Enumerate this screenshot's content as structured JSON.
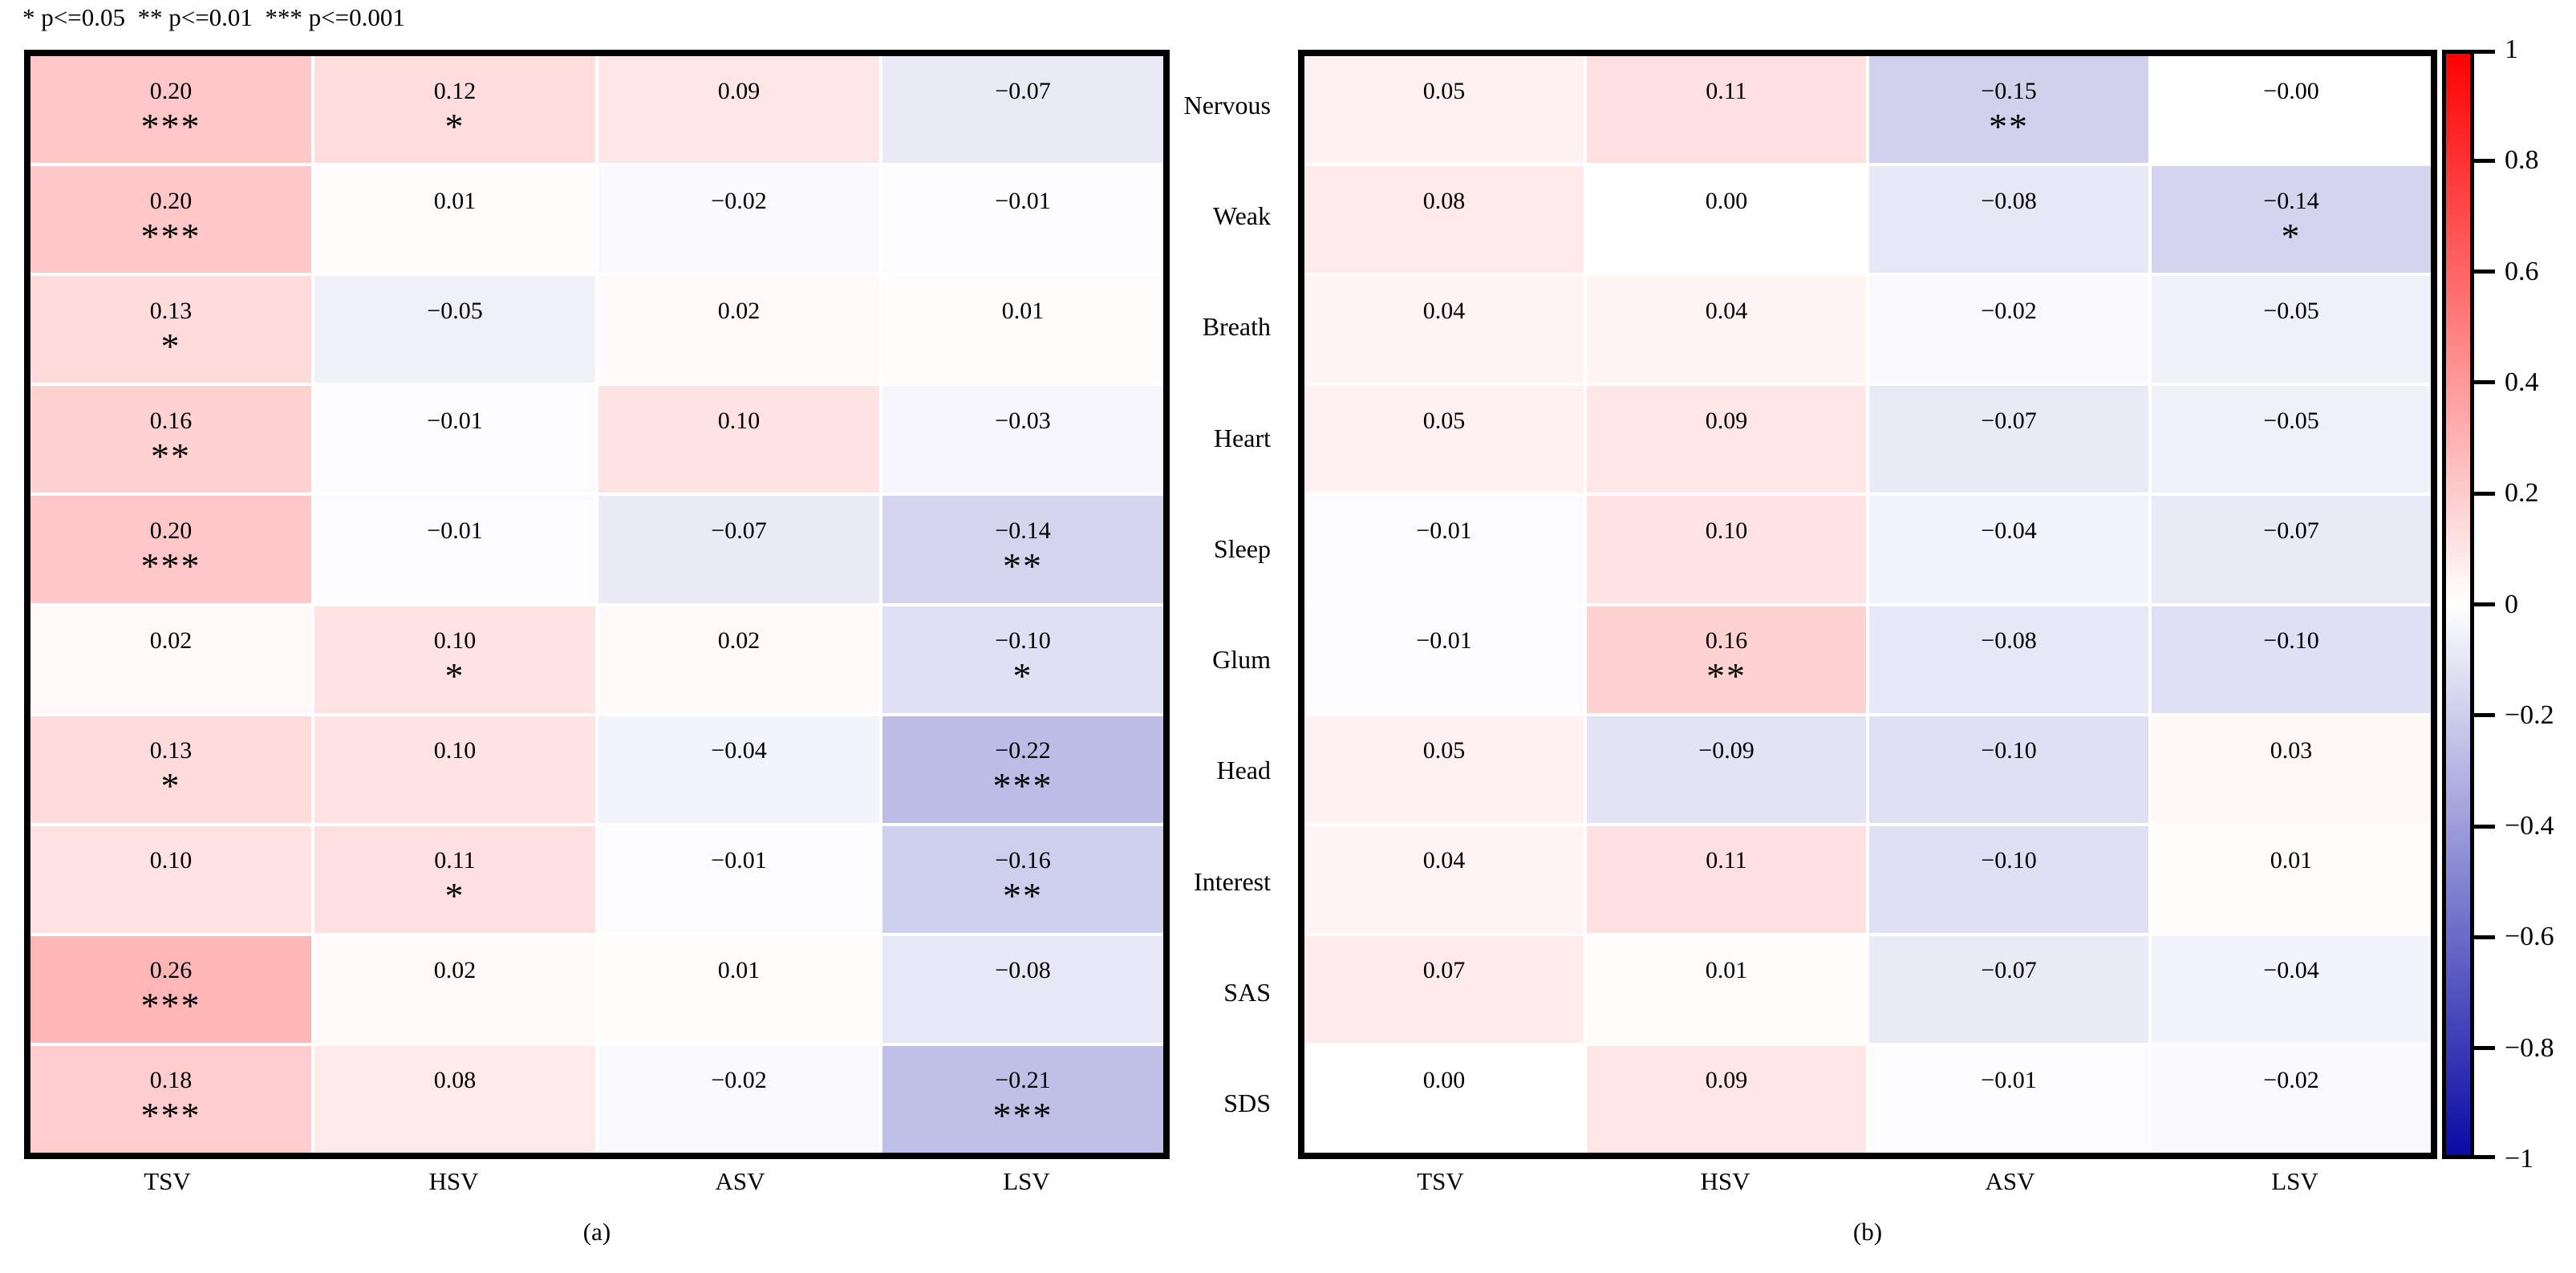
{
  "figure": {
    "legend": "* p<=0.05  ** p<=0.01  *** p<=0.001"
  },
  "chart_data": [
    {
      "id": "a",
      "type": "heatmap",
      "caption": "(a)",
      "columns": [
        "TSV",
        "HSV",
        "ASV",
        "LSV"
      ],
      "rows": [
        "Nervous",
        "Weak",
        "Breath",
        "Heart",
        "Sleep",
        "Glum",
        "Head",
        "Interest",
        "SAS",
        "SDS"
      ],
      "value_range": [
        -1,
        1
      ],
      "cells": [
        [
          [
            "0.20",
            "***"
          ],
          [
            "0.12",
            "*"
          ],
          [
            "0.09",
            ""
          ],
          [
            "-0.07",
            ""
          ]
        ],
        [
          [
            "0.20",
            "***"
          ],
          [
            "0.01",
            ""
          ],
          [
            "-0.02",
            ""
          ],
          [
            "-0.01",
            ""
          ]
        ],
        [
          [
            "0.13",
            "*"
          ],
          [
            "-0.05",
            ""
          ],
          [
            "0.02",
            ""
          ],
          [
            "0.01",
            ""
          ]
        ],
        [
          [
            "0.16",
            "**"
          ],
          [
            "-0.01",
            ""
          ],
          [
            "0.10",
            ""
          ],
          [
            "-0.03",
            ""
          ]
        ],
        [
          [
            "0.20",
            "***"
          ],
          [
            "-0.01",
            ""
          ],
          [
            "-0.07",
            ""
          ],
          [
            "-0.14",
            "**"
          ]
        ],
        [
          [
            "0.02",
            ""
          ],
          [
            "0.10",
            "*"
          ],
          [
            "0.02",
            ""
          ],
          [
            "-0.10",
            "*"
          ]
        ],
        [
          [
            "0.13",
            "*"
          ],
          [
            "0.10",
            ""
          ],
          [
            "-0.04",
            ""
          ],
          [
            "-0.22",
            "***"
          ]
        ],
        [
          [
            "0.10",
            ""
          ],
          [
            "0.11",
            "*"
          ],
          [
            "-0.01",
            ""
          ],
          [
            "-0.16",
            "**"
          ]
        ],
        [
          [
            "0.26",
            "***"
          ],
          [
            "0.02",
            ""
          ],
          [
            "0.01",
            ""
          ],
          [
            "-0.08",
            ""
          ]
        ],
        [
          [
            "0.18",
            "***"
          ],
          [
            "0.08",
            ""
          ],
          [
            "-0.02",
            ""
          ],
          [
            "-0.21",
            "***"
          ]
        ]
      ]
    },
    {
      "id": "b",
      "type": "heatmap",
      "caption": "(b)",
      "columns": [
        "TSV",
        "HSV",
        "ASV",
        "LSV"
      ],
      "rows": [
        "Nervous",
        "Weak",
        "Breath",
        "Heart",
        "Sleep",
        "Glum",
        "Head",
        "Interest",
        "SAS",
        "SDS"
      ],
      "value_range": [
        -1,
        1
      ],
      "cells": [
        [
          [
            "0.05",
            ""
          ],
          [
            "0.11",
            ""
          ],
          [
            "-0.15",
            "**"
          ],
          [
            "-0.00",
            ""
          ]
        ],
        [
          [
            "0.08",
            ""
          ],
          [
            "0.00",
            ""
          ],
          [
            "-0.08",
            ""
          ],
          [
            "-0.14",
            "*"
          ]
        ],
        [
          [
            "0.04",
            ""
          ],
          [
            "0.04",
            ""
          ],
          [
            "-0.02",
            ""
          ],
          [
            "-0.05",
            ""
          ]
        ],
        [
          [
            "0.05",
            ""
          ],
          [
            "0.09",
            ""
          ],
          [
            "-0.07",
            ""
          ],
          [
            "-0.05",
            ""
          ]
        ],
        [
          [
            "-0.01",
            ""
          ],
          [
            "0.10",
            ""
          ],
          [
            "-0.04",
            ""
          ],
          [
            "-0.07",
            ""
          ]
        ],
        [
          [
            "-0.01",
            ""
          ],
          [
            "0.16",
            "**"
          ],
          [
            "-0.08",
            ""
          ],
          [
            "-0.10",
            ""
          ]
        ],
        [
          [
            "0.05",
            ""
          ],
          [
            "-0.09",
            ""
          ],
          [
            "-0.10",
            ""
          ],
          [
            "0.03",
            ""
          ]
        ],
        [
          [
            "0.04",
            ""
          ],
          [
            "0.11",
            ""
          ],
          [
            "-0.10",
            ""
          ],
          [
            "0.01",
            ""
          ]
        ],
        [
          [
            "0.07",
            ""
          ],
          [
            "0.01",
            ""
          ],
          [
            "-0.07",
            ""
          ],
          [
            "-0.04",
            ""
          ]
        ],
        [
          [
            "0.00",
            ""
          ],
          [
            "0.09",
            ""
          ],
          [
            "-0.01",
            ""
          ],
          [
            "-0.02",
            ""
          ]
        ]
      ]
    }
  ],
  "colorbar": {
    "ticks": [
      "1",
      "0.8",
      "0.6",
      "0.4",
      "0.2",
      "0",
      "-0.2",
      "-0.4",
      "-0.6",
      "-0.8",
      "-1"
    ],
    "max_color": "#ff0000",
    "mid_color": "#ffffff",
    "min_color": "#0a0aa5",
    "range": [
      -1,
      1
    ]
  }
}
